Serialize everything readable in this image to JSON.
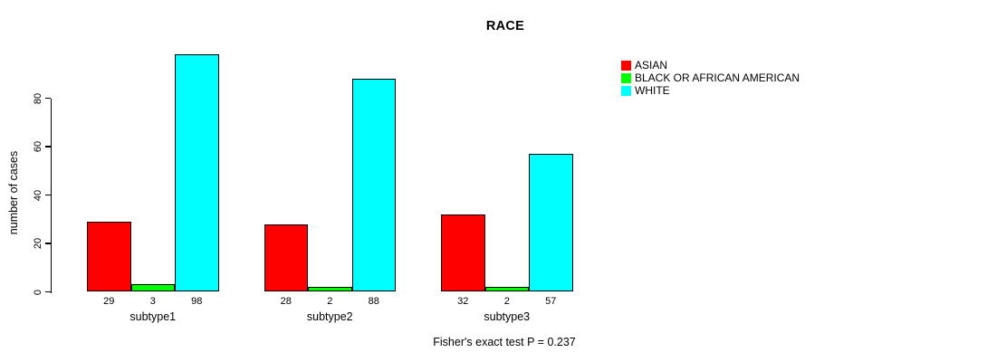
{
  "chart_data": {
    "type": "bar",
    "title": "RACE",
    "xlabel": "",
    "ylabel": "number of cases",
    "categories": [
      "subtype1",
      "subtype2",
      "subtype3"
    ],
    "series": [
      {
        "name": "ASIAN",
        "color": "#FF0000",
        "values": [
          29,
          28,
          32
        ]
      },
      {
        "name": "BLACK OR AFRICAN AMERICAN",
        "color": "#00FF00",
        "values": [
          3,
          2,
          2
        ]
      },
      {
        "name": "WHITE",
        "color": "#00FFFF",
        "values": [
          98,
          88,
          57
        ]
      }
    ],
    "bar_value_labels": [
      [
        29,
        3,
        98
      ],
      [
        28,
        2,
        88
      ],
      [
        32,
        2,
        57
      ]
    ],
    "yticks": [
      0,
      20,
      40,
      60,
      80
    ],
    "ylim": [
      0,
      98
    ],
    "grid": false,
    "legend_position": "top-right",
    "legend_entries": [
      "ASIAN",
      "BLACK OR AFRICAN AMERICAN",
      "WHITE"
    ],
    "annotation": "Fisher's exact test P = 0.237",
    "background_color": "#FFFFFF",
    "text_color": "#000000"
  }
}
